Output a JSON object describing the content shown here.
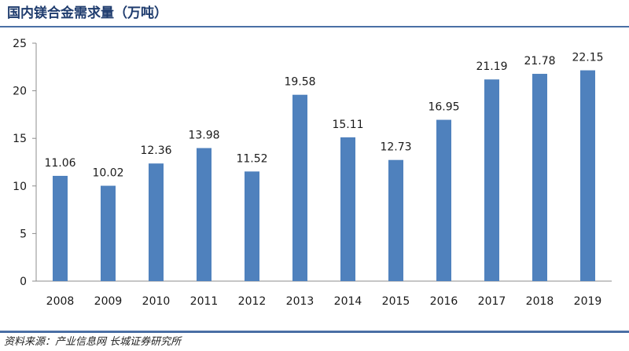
{
  "title": "国内镁合金需求量（万吨）",
  "source": "资料来源：产业信息网 长城证券研究所",
  "colors": {
    "bar": "#4f81bd",
    "rule": "#4a6fa5",
    "title": "#1f3c6e"
  },
  "chart_data": {
    "type": "bar",
    "title": "国内镁合金需求量（万吨）",
    "xlabel": "",
    "ylabel": "",
    "categories": [
      "2008",
      "2009",
      "2010",
      "2011",
      "2012",
      "2013",
      "2014",
      "2015",
      "2016",
      "2017",
      "2018",
      "2019"
    ],
    "values": [
      11.06,
      10.02,
      12.36,
      13.98,
      11.52,
      19.58,
      15.11,
      12.73,
      16.95,
      21.19,
      21.78,
      22.15
    ],
    "data_labels": [
      "11.06",
      "10.02",
      "12.36",
      "13.98",
      "11.52",
      "19.58",
      "15.11",
      "12.73",
      "16.95",
      "21.19",
      "21.78",
      "22.15"
    ],
    "yticks": [
      "0",
      "5",
      "10",
      "15",
      "20",
      "25"
    ],
    "ylim": [
      0,
      25
    ],
    "grid": false,
    "legend": "none"
  }
}
